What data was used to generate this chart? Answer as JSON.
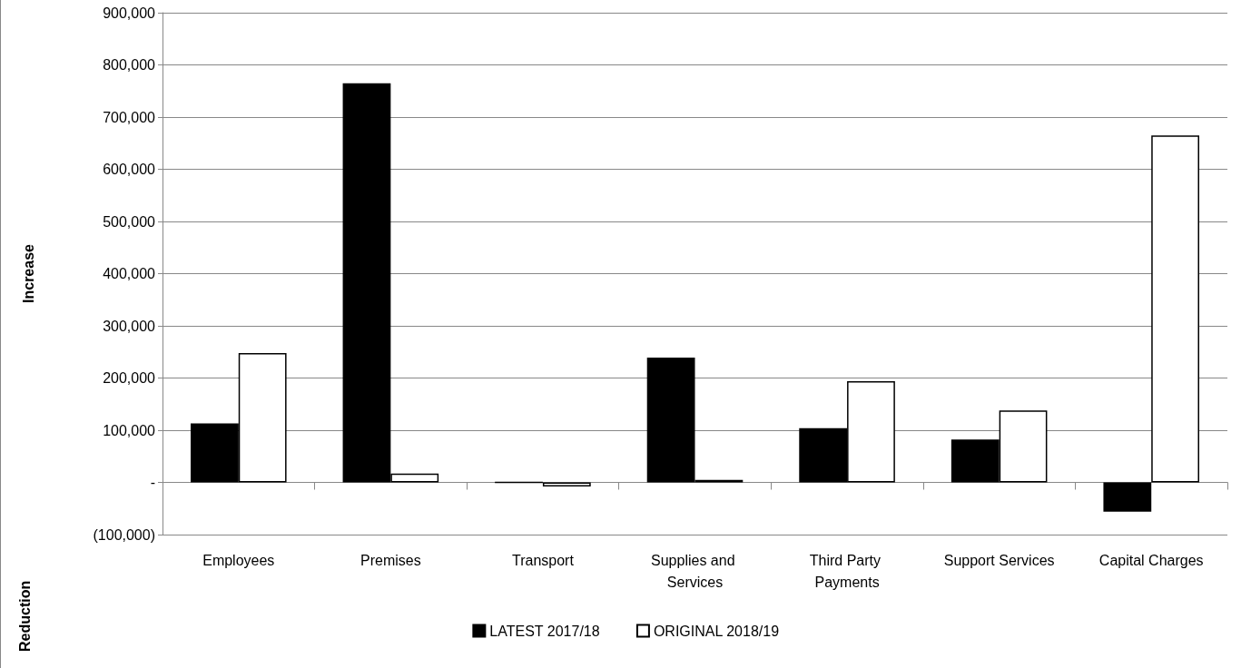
{
  "chart_data": {
    "type": "bar",
    "ylabel": "Increase",
    "annotations": [
      "Reduction"
    ],
    "categories": [
      "Employees",
      "Premises",
      "Transport",
      "Supplies and Services",
      "Third Party Payments",
      "Support Services",
      "Capital Charges"
    ],
    "series": [
      {
        "name": "LATEST 2017/18",
        "color": "#000000",
        "values": [
          113000,
          765000,
          0,
          239000,
          104000,
          82000,
          -56000
        ]
      },
      {
        "name": "ORIGINAL 2018/19",
        "color": "#ffffff",
        "values": [
          248000,
          17000,
          -8000,
          5000,
          194000,
          138000,
          665000
        ]
      }
    ],
    "ylim": [
      -100000,
      900000
    ],
    "yticks": [
      {
        "value": -100000,
        "label": "(100,000)"
      },
      {
        "value": 0,
        "label": "-"
      },
      {
        "value": 100000,
        "label": "100,000"
      },
      {
        "value": 200000,
        "label": "200,000"
      },
      {
        "value": 300000,
        "label": "300,000"
      },
      {
        "value": 400000,
        "label": "400,000"
      },
      {
        "value": 500000,
        "label": "500,000"
      },
      {
        "value": 600000,
        "label": "600,000"
      },
      {
        "value": 700000,
        "label": "700,000"
      },
      {
        "value": 800000,
        "label": "800,000"
      },
      {
        "value": 900000,
        "label": "900,000"
      }
    ],
    "grid": "y",
    "legend": "bottom"
  }
}
